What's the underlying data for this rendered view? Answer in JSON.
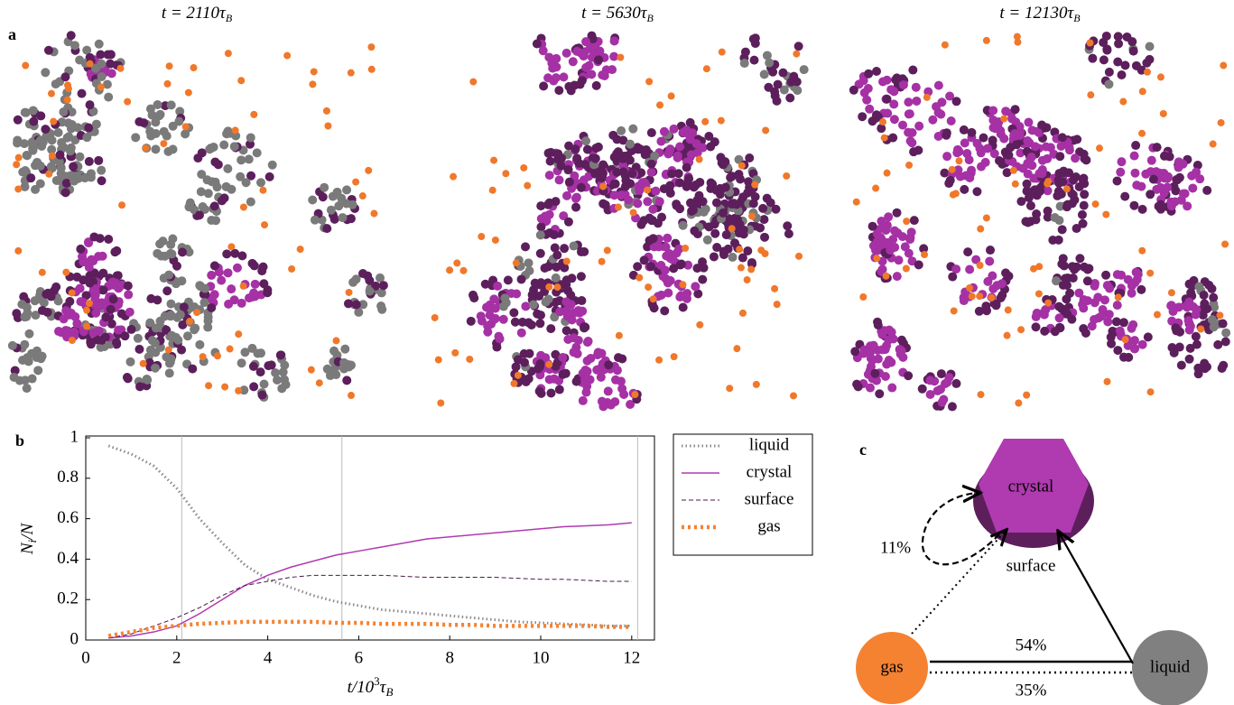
{
  "panels": {
    "a": "a",
    "b": "b",
    "c": "c"
  },
  "snapshots": [
    {
      "main": "t = 2110τ",
      "sub": "B"
    },
    {
      "main": "t = 5630τ",
      "sub": "B"
    },
    {
      "main": "t = 12130τ",
      "sub": "B"
    }
  ],
  "chart_data": {
    "type": "line",
    "ylabel": {
      "main": "N",
      "sub": "i",
      "rest": "/N"
    },
    "xlabel": {
      "main": "t/10",
      "sup": "3",
      "tau": "τ",
      "sub": "B"
    },
    "x": [
      0.5,
      1,
      1.5,
      2,
      2.5,
      3,
      3.5,
      4,
      4.5,
      5,
      5.5,
      6,
      6.5,
      7,
      7.5,
      8,
      8.5,
      9,
      9.5,
      10,
      10.5,
      11,
      11.5,
      12
    ],
    "series": [
      {
        "name": "liquid",
        "color": "#8c8c8c",
        "style": "dotted",
        "values": [
          0.96,
          0.92,
          0.86,
          0.75,
          0.6,
          0.48,
          0.37,
          0.3,
          0.26,
          0.22,
          0.19,
          0.17,
          0.15,
          0.14,
          0.13,
          0.12,
          0.11,
          0.1,
          0.09,
          0.085,
          0.08,
          0.075,
          0.07,
          0.07
        ]
      },
      {
        "name": "crystal",
        "color": "#b03ab0",
        "style": "solid",
        "values": [
          0.01,
          0.02,
          0.04,
          0.07,
          0.13,
          0.2,
          0.27,
          0.32,
          0.36,
          0.39,
          0.42,
          0.44,
          0.46,
          0.48,
          0.5,
          0.51,
          0.52,
          0.53,
          0.54,
          0.55,
          0.56,
          0.565,
          0.57,
          0.58
        ]
      },
      {
        "name": "surface",
        "color": "#4a1a4a",
        "style": "dashed",
        "values": [
          0.01,
          0.03,
          0.07,
          0.11,
          0.16,
          0.22,
          0.27,
          0.29,
          0.31,
          0.32,
          0.32,
          0.32,
          0.32,
          0.315,
          0.31,
          0.31,
          0.31,
          0.31,
          0.305,
          0.3,
          0.3,
          0.295,
          0.29,
          0.29
        ]
      },
      {
        "name": "gas",
        "color": "#f58231",
        "style": "thickdotted",
        "values": [
          0.02,
          0.04,
          0.06,
          0.07,
          0.08,
          0.085,
          0.09,
          0.09,
          0.09,
          0.09,
          0.085,
          0.085,
          0.08,
          0.08,
          0.08,
          0.075,
          0.075,
          0.07,
          0.07,
          0.07,
          0.07,
          0.07,
          0.065,
          0.065
        ]
      }
    ],
    "xlim": [
      0,
      12.5
    ],
    "ylim": [
      0,
      1
    ],
    "xticks": [
      0,
      2,
      4,
      6,
      8,
      10,
      12
    ],
    "yticks": [
      0,
      0.2,
      0.4,
      0.6,
      0.8,
      1
    ],
    "vlines": [
      2.11,
      5.63,
      12.13
    ],
    "legend": "outside-right"
  },
  "diagram": {
    "nodes": {
      "crystal": "crystal",
      "surface": "surface",
      "gas": "gas",
      "liquid": "liquid"
    },
    "edges": {
      "self": "11%",
      "solid": "54%",
      "dotted": "35%"
    }
  }
}
